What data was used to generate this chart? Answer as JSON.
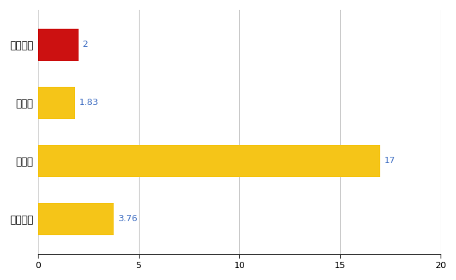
{
  "categories": [
    "下諏訪町",
    "県平均",
    "県最大",
    "全国平均"
  ],
  "values": [
    2,
    1.83,
    17,
    3.76
  ],
  "bar_colors": [
    "#CC1111",
    "#F5C518",
    "#F5C518",
    "#F5C518"
  ],
  "value_labels": [
    "2",
    "1.83",
    "17",
    "3.76"
  ],
  "label_color": "#4472C4",
  "xlim": [
    0,
    20
  ],
  "xticks": [
    0,
    5,
    10,
    15,
    20
  ],
  "grid_color": "#C8C8C8",
  "background_color": "#FFFFFF",
  "bar_height": 0.55,
  "figsize": [
    6.5,
    4.0
  ],
  "dpi": 100
}
